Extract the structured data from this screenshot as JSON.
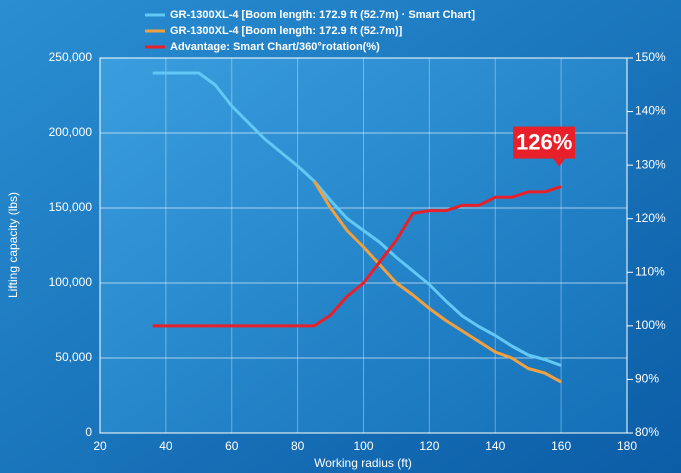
{
  "chart_data": {
    "type": "line",
    "x_label": "Working radius (ft)",
    "y_label": "Lifting capacity (lbs)",
    "xlim": [
      20,
      180
    ],
    "xticks": [
      20,
      40,
      60,
      80,
      100,
      120,
      140,
      160,
      180
    ],
    "ylim": [
      0,
      250000
    ],
    "yticks": [
      0,
      {
        "value": 50000,
        "label": "50,000"
      },
      {
        "value": 100000,
        "label": "100,000"
      },
      {
        "value": 150000,
        "label": "150,000"
      },
      {
        "value": 200000,
        "label": "200,000"
      },
      {
        "value": 250000,
        "label": "250,000"
      }
    ],
    "y2lim": [
      80,
      150
    ],
    "y2ticks": [
      {
        "value": 80,
        "label": "80%"
      },
      {
        "value": 90,
        "label": "90%"
      },
      {
        "value": 100,
        "label": "100%"
      },
      {
        "value": 110,
        "label": "110%"
      },
      {
        "value": 120,
        "label": "120%"
      },
      {
        "value": 130,
        "label": "130%"
      },
      {
        "value": 140,
        "label": "140%"
      },
      {
        "value": 150,
        "label": "150%"
      }
    ],
    "grid": true,
    "series": [
      {
        "name": "GR-1300XL-4 [Boom length: 172.9 ft (52.7m) · Smart Chart]",
        "color": "#62c8f4",
        "x": [
          36,
          50,
          55,
          60,
          70,
          80,
          85,
          90,
          95,
          100,
          105,
          110,
          115,
          120,
          125,
          130,
          135,
          140,
          145,
          150,
          155,
          160
        ],
        "values": [
          240000,
          240000,
          232000,
          218000,
          196000,
          178000,
          168000,
          155000,
          143000,
          135000,
          127000,
          117000,
          108000,
          99000,
          88000,
          78000,
          71000,
          65000,
          58000,
          52000,
          49000,
          45000
        ]
      },
      {
        "name": "GR-1300XL-4 [Boom length: 172.9 ft (52.7m)]",
        "color": "#f0a040",
        "x": [
          85,
          90,
          95,
          100,
          105,
          110,
          115,
          120,
          125,
          130,
          135,
          140,
          145,
          150,
          155,
          160
        ],
        "values": [
          168000,
          150000,
          135000,
          124000,
          112000,
          100000,
          92000,
          83000,
          75000,
          68000,
          61000,
          54000,
          50000,
          43000,
          40000,
          34000
        ]
      },
      {
        "name": "Advantage: Smart Chart/360°rotation(%)",
        "color": "#e8202a",
        "axis": "y2",
        "x": [
          36,
          85,
          90,
          95,
          100,
          105,
          110,
          115,
          120,
          125,
          130,
          135,
          140,
          145,
          150,
          155,
          160
        ],
        "values": [
          100,
          100,
          102,
          105.5,
          108,
          112,
          116,
          121,
          121.5,
          121.5,
          122.5,
          122.5,
          124,
          124,
          125,
          125,
          126
        ]
      }
    ],
    "annotation": "126%"
  }
}
